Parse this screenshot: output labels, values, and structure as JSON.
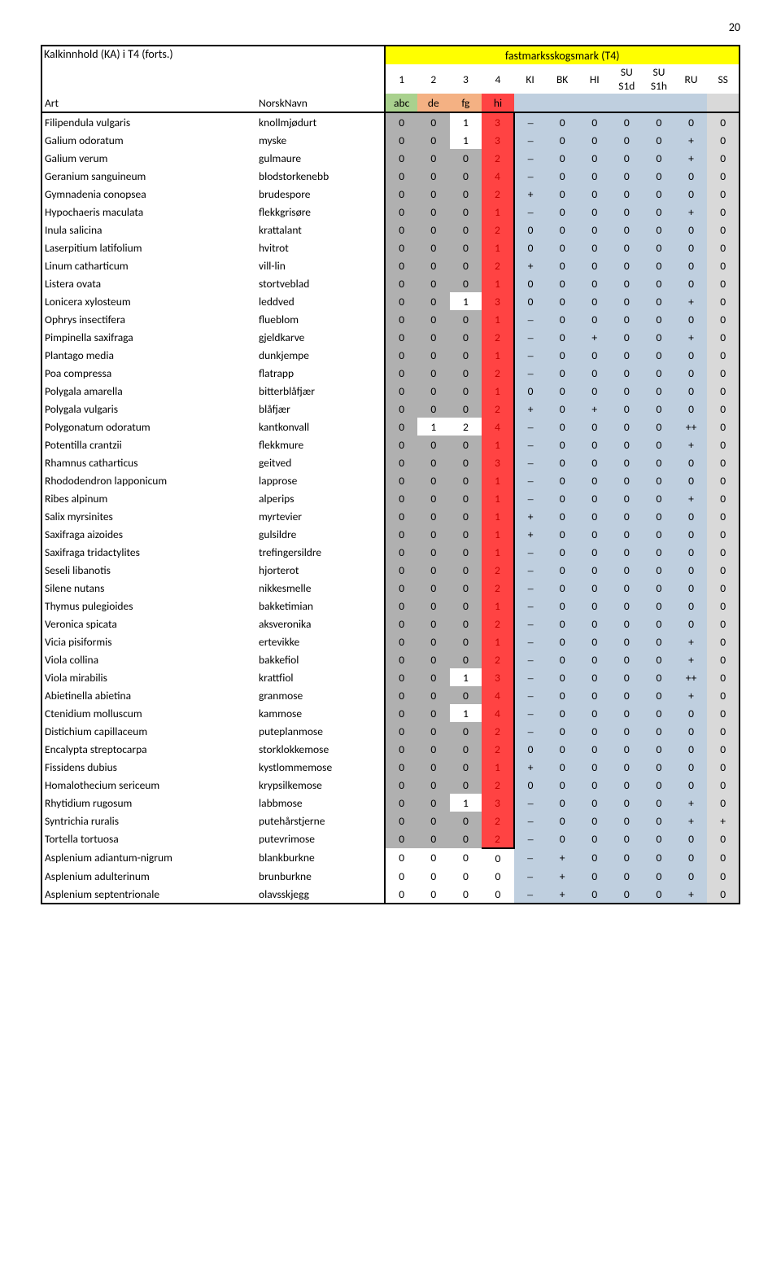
{
  "page_number": "20",
  "header": {
    "title": "Kalkinnhold (KA) i T4 (forts.)",
    "super": "fastmarksskogsmark (T4)",
    "art": "Art",
    "norsk": "NorskNavn",
    "cols": [
      "1",
      "2",
      "3",
      "4",
      "KI",
      "BK",
      "HI",
      "SU\nS1d",
      "SU\nS1h",
      "RU",
      "SS"
    ],
    "sub": [
      "abc",
      "de",
      "fg",
      "hi"
    ]
  },
  "colors": {
    "green": "#a9d18e",
    "salmon": "#f4b183",
    "red": "#ff4343",
    "data_blue": "#bfcfdf",
    "gray_dk": "#b0b0b0",
    "gray_lt": "#d9d9d9",
    "yellow": "#ffff00",
    "txt_red": "#c00000"
  },
  "en_dash": "–",
  "boxed_rows": 44,
  "rows": [
    {
      "a": "Filipendula vulgaris",
      "n": "knollmjødurt",
      "v": [
        "0",
        "0",
        "1",
        "3"
      ],
      "h": [
        2,
        2,
        3,
        1
      ],
      "d": [
        "–",
        "0",
        "0",
        "0",
        "0",
        "0",
        "0"
      ]
    },
    {
      "a": "Galium odoratum",
      "n": "myske",
      "v": [
        "0",
        "0",
        "1",
        "3"
      ],
      "h": [
        2,
        2,
        3,
        1
      ],
      "d": [
        "–",
        "0",
        "0",
        "0",
        "0",
        "+",
        "0"
      ]
    },
    {
      "a": "Galium verum",
      "n": "gulmaure",
      "v": [
        "0",
        "0",
        "0",
        "2"
      ],
      "h": [
        2,
        2,
        2,
        1
      ],
      "d": [
        "–",
        "0",
        "0",
        "0",
        "0",
        "+",
        "0"
      ]
    },
    {
      "a": "Geranium sanguineum",
      "n": "blodstorkenebb",
      "v": [
        "0",
        "0",
        "0",
        "4"
      ],
      "h": [
        2,
        2,
        2,
        1
      ],
      "d": [
        "–",
        "0",
        "0",
        "0",
        "0",
        "0",
        "0"
      ]
    },
    {
      "a": "Gymnadenia conopsea",
      "n": "brudespore",
      "v": [
        "0",
        "0",
        "0",
        "2"
      ],
      "h": [
        2,
        2,
        2,
        1
      ],
      "d": [
        "+",
        "0",
        "0",
        "0",
        "0",
        "0",
        "0"
      ]
    },
    {
      "a": "Hypochaeris maculata",
      "n": "flekkgrisøre",
      "v": [
        "0",
        "0",
        "0",
        "1"
      ],
      "h": [
        2,
        2,
        2,
        1
      ],
      "d": [
        "–",
        "0",
        "0",
        "0",
        "0",
        "+",
        "0"
      ]
    },
    {
      "a": "Inula salicina",
      "n": "krattalant",
      "v": [
        "0",
        "0",
        "0",
        "2"
      ],
      "h": [
        2,
        2,
        2,
        1
      ],
      "d": [
        "0",
        "0",
        "0",
        "0",
        "0",
        "0",
        "0"
      ]
    },
    {
      "a": "Laserpitium latifolium",
      "n": "hvitrot",
      "v": [
        "0",
        "0",
        "0",
        "1"
      ],
      "h": [
        2,
        2,
        2,
        1
      ],
      "d": [
        "0",
        "0",
        "0",
        "0",
        "0",
        "0",
        "0"
      ]
    },
    {
      "a": "Linum catharticum",
      "n": "vill-lin",
      "v": [
        "0",
        "0",
        "0",
        "2"
      ],
      "h": [
        2,
        2,
        2,
        1
      ],
      "d": [
        "+",
        "0",
        "0",
        "0",
        "0",
        "0",
        "0"
      ]
    },
    {
      "a": "Listera ovata",
      "n": "stortveblad",
      "v": [
        "0",
        "0",
        "0",
        "1"
      ],
      "h": [
        2,
        2,
        2,
        1
      ],
      "d": [
        "0",
        "0",
        "0",
        "0",
        "0",
        "0",
        "0"
      ]
    },
    {
      "a": "Lonicera xylosteum",
      "n": "leddved",
      "v": [
        "0",
        "0",
        "1",
        "3"
      ],
      "h": [
        2,
        2,
        3,
        1
      ],
      "d": [
        "0",
        "0",
        "0",
        "0",
        "0",
        "+",
        "0"
      ]
    },
    {
      "a": "Ophrys insectifera",
      "n": "flueblom",
      "v": [
        "0",
        "0",
        "0",
        "1"
      ],
      "h": [
        2,
        2,
        2,
        1
      ],
      "d": [
        "–",
        "0",
        "0",
        "0",
        "0",
        "0",
        "0"
      ]
    },
    {
      "a": "Pimpinella saxifraga",
      "n": "gjeldkarve",
      "v": [
        "0",
        "0",
        "0",
        "2"
      ],
      "h": [
        2,
        2,
        2,
        1
      ],
      "d": [
        "–",
        "0",
        "+",
        "0",
        "0",
        "+",
        "0"
      ]
    },
    {
      "a": "Plantago media",
      "n": "dunkjempe",
      "v": [
        "0",
        "0",
        "0",
        "1"
      ],
      "h": [
        2,
        2,
        2,
        1
      ],
      "d": [
        "–",
        "0",
        "0",
        "0",
        "0",
        "0",
        "0"
      ]
    },
    {
      "a": "Poa compressa",
      "n": "flatrapp",
      "v": [
        "0",
        "0",
        "0",
        "2"
      ],
      "h": [
        2,
        2,
        2,
        1
      ],
      "d": [
        "–",
        "0",
        "0",
        "0",
        "0",
        "0",
        "0"
      ]
    },
    {
      "a": "Polygala amarella",
      "n": "bitterblåfjær",
      "v": [
        "0",
        "0",
        "0",
        "1"
      ],
      "h": [
        2,
        2,
        2,
        1
      ],
      "d": [
        "0",
        "0",
        "0",
        "0",
        "0",
        "0",
        "0"
      ]
    },
    {
      "a": "Polygala vulgaris",
      "n": "blåfjær",
      "v": [
        "0",
        "0",
        "0",
        "2"
      ],
      "h": [
        2,
        2,
        2,
        1
      ],
      "d": [
        "+",
        "0",
        "+",
        "0",
        "0",
        "0",
        "0"
      ]
    },
    {
      "a": "Polygonatum odoratum",
      "n": "kantkonvall",
      "v": [
        "0",
        "1",
        "2",
        "4"
      ],
      "h": [
        2,
        3,
        3,
        1
      ],
      "d": [
        "–",
        "0",
        "0",
        "0",
        "0",
        "++",
        "0"
      ]
    },
    {
      "a": "Potentilla crantzii",
      "n": "flekkmure",
      "v": [
        "0",
        "0",
        "0",
        "1"
      ],
      "h": [
        2,
        2,
        2,
        1
      ],
      "d": [
        "–",
        "0",
        "0",
        "0",
        "0",
        "+",
        "0"
      ]
    },
    {
      "a": "Rhamnus catharticus",
      "n": "geitved",
      "v": [
        "0",
        "0",
        "0",
        "3"
      ],
      "h": [
        2,
        2,
        2,
        1
      ],
      "d": [
        "–",
        "0",
        "0",
        "0",
        "0",
        "0",
        "0"
      ]
    },
    {
      "a": "Rhododendron lapponicum",
      "n": "lapprose",
      "v": [
        "0",
        "0",
        "0",
        "1"
      ],
      "h": [
        2,
        2,
        2,
        1
      ],
      "d": [
        "–",
        "0",
        "0",
        "0",
        "0",
        "0",
        "0"
      ]
    },
    {
      "a": "Ribes alpinum",
      "n": "alperips",
      "v": [
        "0",
        "0",
        "0",
        "1"
      ],
      "h": [
        2,
        2,
        2,
        1
      ],
      "d": [
        "–",
        "0",
        "0",
        "0",
        "0",
        "+",
        "0"
      ]
    },
    {
      "a": "Salix myrsinites",
      "n": "myrtevier",
      "v": [
        "0",
        "0",
        "0",
        "1"
      ],
      "h": [
        2,
        2,
        2,
        1
      ],
      "d": [
        "+",
        "0",
        "0",
        "0",
        "0",
        "0",
        "0"
      ]
    },
    {
      "a": "Saxifraga aizoides",
      "n": "gulsildre",
      "v": [
        "0",
        "0",
        "0",
        "1"
      ],
      "h": [
        2,
        2,
        2,
        1
      ],
      "d": [
        "+",
        "0",
        "0",
        "0",
        "0",
        "0",
        "0"
      ]
    },
    {
      "a": "Saxifraga tridactylites",
      "n": "trefingersildre",
      "v": [
        "0",
        "0",
        "0",
        "1"
      ],
      "h": [
        2,
        2,
        2,
        1
      ],
      "d": [
        "–",
        "0",
        "0",
        "0",
        "0",
        "0",
        "0"
      ]
    },
    {
      "a": "Seseli libanotis",
      "n": "hjorterot",
      "v": [
        "0",
        "0",
        "0",
        "2"
      ],
      "h": [
        2,
        2,
        2,
        1
      ],
      "d": [
        "–",
        "0",
        "0",
        "0",
        "0",
        "0",
        "0"
      ]
    },
    {
      "a": "Silene nutans",
      "n": "nikkesmelle",
      "v": [
        "0",
        "0",
        "0",
        "2"
      ],
      "h": [
        2,
        2,
        2,
        1
      ],
      "d": [
        "–",
        "0",
        "0",
        "0",
        "0",
        "0",
        "0"
      ]
    },
    {
      "a": "Thymus pulegioides",
      "n": "bakketimian",
      "v": [
        "0",
        "0",
        "0",
        "1"
      ],
      "h": [
        2,
        2,
        2,
        1
      ],
      "d": [
        "–",
        "0",
        "0",
        "0",
        "0",
        "0",
        "0"
      ]
    },
    {
      "a": "Veronica spicata",
      "n": "aksveronika",
      "v": [
        "0",
        "0",
        "0",
        "2"
      ],
      "h": [
        2,
        2,
        2,
        1
      ],
      "d": [
        "–",
        "0",
        "0",
        "0",
        "0",
        "0",
        "0"
      ]
    },
    {
      "a": "Vicia pisiformis",
      "n": "ertevikke",
      "v": [
        "0",
        "0",
        "0",
        "1"
      ],
      "h": [
        2,
        2,
        2,
        1
      ],
      "d": [
        "–",
        "0",
        "0",
        "0",
        "0",
        "+",
        "0"
      ]
    },
    {
      "a": "Viola collina",
      "n": "bakkefiol",
      "v": [
        "0",
        "0",
        "0",
        "2"
      ],
      "h": [
        2,
        2,
        2,
        1
      ],
      "d": [
        "–",
        "0",
        "0",
        "0",
        "0",
        "+",
        "0"
      ]
    },
    {
      "a": "Viola mirabilis",
      "n": "krattfiol",
      "v": [
        "0",
        "0",
        "1",
        "3"
      ],
      "h": [
        2,
        2,
        3,
        1
      ],
      "d": [
        "–",
        "0",
        "0",
        "0",
        "0",
        "++",
        "0"
      ]
    },
    {
      "a": "Abietinella abietina",
      "n": "granmose",
      "v": [
        "0",
        "0",
        "0",
        "4"
      ],
      "h": [
        2,
        2,
        2,
        1
      ],
      "d": [
        "–",
        "0",
        "0",
        "0",
        "0",
        "+",
        "0"
      ]
    },
    {
      "a": "Ctenidium molluscum",
      "n": "kammose",
      "v": [
        "0",
        "0",
        "1",
        "4"
      ],
      "h": [
        2,
        2,
        3,
        1
      ],
      "d": [
        "–",
        "0",
        "0",
        "0",
        "0",
        "0",
        "0"
      ]
    },
    {
      "a": "Distichium capillaceum",
      "n": "puteplanmose",
      "v": [
        "0",
        "0",
        "0",
        "2"
      ],
      "h": [
        2,
        2,
        2,
        1
      ],
      "d": [
        "–",
        "0",
        "0",
        "0",
        "0",
        "0",
        "0"
      ]
    },
    {
      "a": "Encalypta streptocarpa",
      "n": "storklokkemose",
      "v": [
        "0",
        "0",
        "0",
        "2"
      ],
      "h": [
        2,
        2,
        2,
        1
      ],
      "d": [
        "0",
        "0",
        "0",
        "0",
        "0",
        "0",
        "0"
      ]
    },
    {
      "a": "Fissidens dubius",
      "n": "kystlommemose",
      "v": [
        "0",
        "0",
        "0",
        "1"
      ],
      "h": [
        2,
        2,
        2,
        1
      ],
      "d": [
        "+",
        "0",
        "0",
        "0",
        "0",
        "0",
        "0"
      ]
    },
    {
      "a": "Homalothecium sericeum",
      "n": "krypsilkemose",
      "v": [
        "0",
        "0",
        "0",
        "2"
      ],
      "h": [
        2,
        2,
        2,
        1
      ],
      "d": [
        "0",
        "0",
        "0",
        "0",
        "0",
        "0",
        "0"
      ]
    },
    {
      "a": "Rhytidium rugosum",
      "n": "labbmose",
      "v": [
        "0",
        "0",
        "1",
        "3"
      ],
      "h": [
        2,
        2,
        3,
        1
      ],
      "d": [
        "–",
        "0",
        "0",
        "0",
        "0",
        "+",
        "0"
      ]
    },
    {
      "a": "Syntrichia ruralis",
      "n": "putehårstjerne",
      "v": [
        "0",
        "0",
        "0",
        "2"
      ],
      "h": [
        2,
        2,
        2,
        1
      ],
      "d": [
        "–",
        "0",
        "0",
        "0",
        "0",
        "+",
        "+"
      ]
    },
    {
      "a": "Tortella tortuosa",
      "n": "putevrimose",
      "v": [
        "0",
        "0",
        "0",
        "2"
      ],
      "h": [
        2,
        2,
        2,
        1
      ],
      "d": [
        "–",
        "0",
        "0",
        "0",
        "0",
        "0",
        "0"
      ]
    },
    {
      "a": "Asplenium adiantum-nigrum",
      "n": "blankburkne",
      "v": [
        "0",
        "0",
        "0",
        "0"
      ],
      "h": [
        0,
        0,
        0,
        0
      ],
      "d": [
        "–",
        "+",
        "0",
        "0",
        "0",
        "0",
        "0"
      ]
    },
    {
      "a": "Asplenium adulterinum",
      "n": "brunburkne",
      "v": [
        "0",
        "0",
        "0",
        "0"
      ],
      "h": [
        0,
        0,
        0,
        0
      ],
      "d": [
        "–",
        "+",
        "0",
        "0",
        "0",
        "0",
        "0"
      ]
    },
    {
      "a": "Asplenium septentrionale",
      "n": "olavsskjegg",
      "v": [
        "0",
        "0",
        "0",
        "0"
      ],
      "h": [
        0,
        0,
        0,
        0
      ],
      "d": [
        "–",
        "+",
        "0",
        "0",
        "0",
        "+",
        "0"
      ]
    }
  ]
}
